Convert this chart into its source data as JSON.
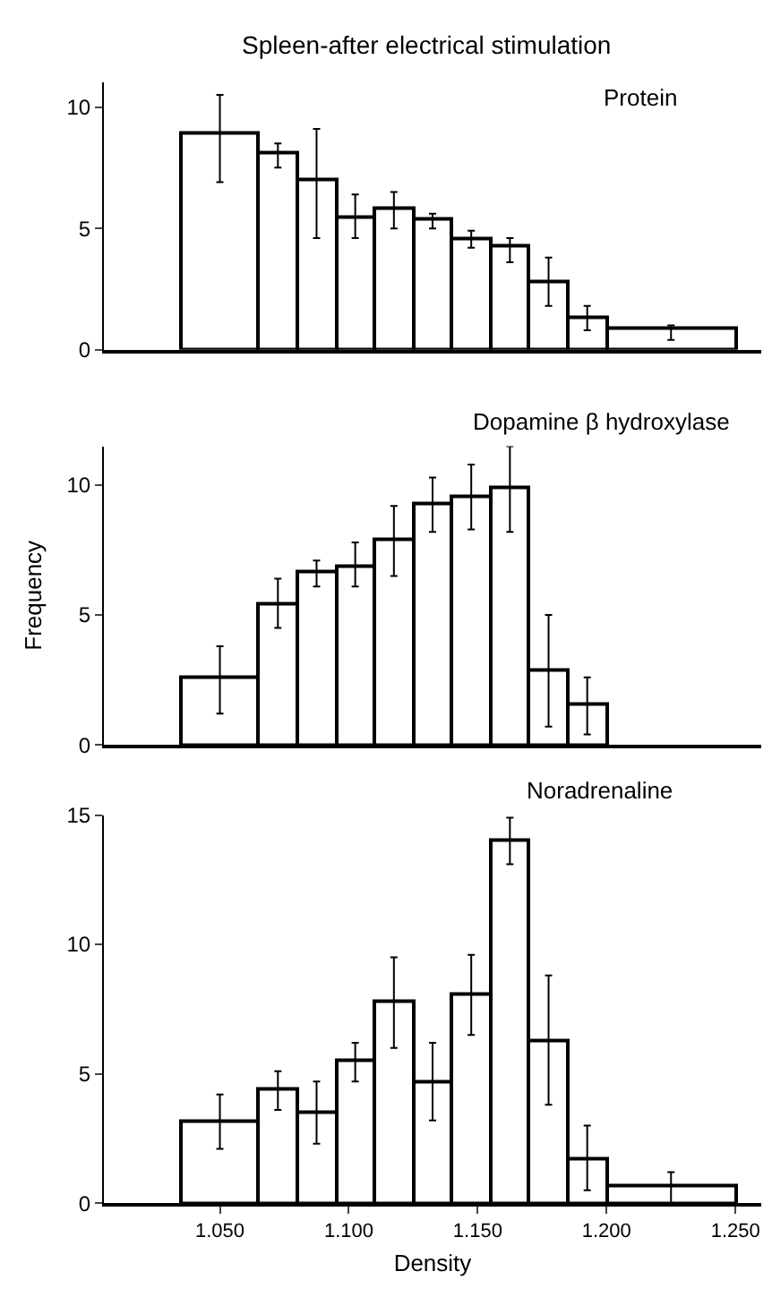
{
  "chart_data": [
    {
      "type": "histogram",
      "title": "Spleen-after electrical stimulation",
      "subtitle": "Protein",
      "color": "#000000",
      "bins": [
        1.035,
        1.065,
        1.08,
        1.095,
        1.11,
        1.125,
        1.14,
        1.155,
        1.17,
        1.185,
        1.2,
        1.25
      ],
      "values": [
        8.9,
        8.1,
        7.0,
        5.5,
        5.8,
        5.4,
        4.6,
        4.3,
        2.8,
        1.3,
        0.9
      ],
      "errors": [
        [
          6.9,
          10.5
        ],
        [
          7.5,
          8.5
        ],
        [
          4.6,
          9.1
        ],
        [
          4.6,
          6.4
        ],
        [
          5.0,
          6.5
        ],
        [
          5.0,
          5.6
        ],
        [
          4.2,
          4.9
        ],
        [
          3.6,
          4.6
        ],
        [
          1.8,
          3.8
        ],
        [
          0.8,
          1.8
        ],
        [
          0.4,
          1.0
        ]
      ],
      "xlim": [
        1.005,
        1.26
      ],
      "ylim": [
        0,
        11
      ],
      "yticks": [
        0,
        5,
        10
      ],
      "tick_labels": "y"
    },
    {
      "type": "histogram",
      "title": "Dopamine β hydroxylase",
      "ylabel": "Frequency",
      "color": "#000000",
      "bins": [
        1.035,
        1.065,
        1.08,
        1.095,
        1.11,
        1.125,
        1.14,
        1.155,
        1.17,
        1.185,
        1.2
      ],
      "values": [
        2.6,
        5.4,
        6.7,
        6.9,
        7.9,
        9.3,
        9.6,
        9.9,
        2.9,
        1.6
      ],
      "errors": [
        [
          1.2,
          3.8
        ],
        [
          4.5,
          6.4
        ],
        [
          6.1,
          7.1
        ],
        [
          6.1,
          7.8
        ],
        [
          6.5,
          9.2
        ],
        [
          8.2,
          10.3
        ],
        [
          8.3,
          10.8
        ],
        [
          8.2,
          11.5
        ],
        [
          0.7,
          5.0
        ],
        [
          0.4,
          2.6
        ]
      ],
      "xlim": [
        1.005,
        1.26
      ],
      "ylim": [
        0,
        11.5
      ],
      "yticks": [
        0,
        5,
        10
      ],
      "tick_labels": "y"
    },
    {
      "type": "histogram",
      "title": "Noradrenaline",
      "xlabel": "Density",
      "color": "#000000",
      "bins": [
        1.035,
        1.065,
        1.08,
        1.095,
        1.11,
        1.125,
        1.14,
        1.155,
        1.17,
        1.185,
        1.2,
        1.25
      ],
      "values": [
        3.2,
        4.4,
        3.5,
        5.5,
        7.8,
        4.7,
        8.1,
        14.0,
        6.3,
        1.7,
        0.7
      ],
      "errors": [
        [
          2.1,
          4.2
        ],
        [
          3.6,
          5.1
        ],
        [
          2.3,
          4.7
        ],
        [
          4.7,
          6.2
        ],
        [
          6.0,
          9.5
        ],
        [
          3.2,
          6.2
        ],
        [
          6.5,
          9.6
        ],
        [
          13.1,
          14.9
        ],
        [
          3.8,
          8.8
        ],
        [
          0.5,
          3.0
        ],
        [
          0.0,
          1.2
        ]
      ],
      "xlim": [
        1.005,
        1.26
      ],
      "xticks": [
        {
          "value": 1.05,
          "label": "1.050"
        },
        {
          "value": 1.1,
          "label": "1.100"
        },
        {
          "value": 1.15,
          "label": "1.150"
        },
        {
          "value": 1.2,
          "label": "1.200"
        },
        {
          "value": 1.25,
          "label": "1.250"
        }
      ],
      "ylim": [
        0,
        15
      ],
      "yticks": [
        0,
        5,
        10,
        15
      ]
    }
  ]
}
